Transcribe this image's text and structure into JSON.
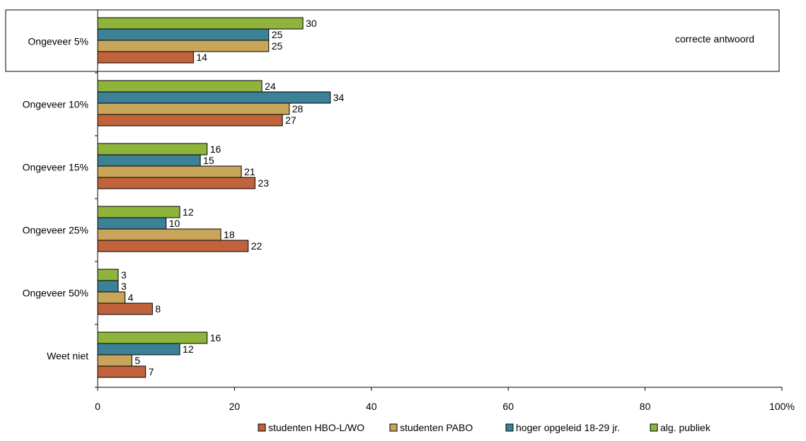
{
  "chart_data": {
    "type": "bar",
    "orientation": "horizontal",
    "categories": [
      "Ongeveer 5%",
      "Ongeveer 10%",
      "Ongeveer 15%",
      "Ongeveer 25%",
      "Ongeveer 50%",
      "Weet niet"
    ],
    "series": [
      {
        "name": "alg. publiek",
        "color": "#8fb43c",
        "values": [
          30,
          24,
          16,
          12,
          3,
          16
        ]
      },
      {
        "name": "hoger opgeleid 18-29 jr.",
        "color": "#3d8197",
        "values": [
          25,
          34,
          15,
          10,
          3,
          12
        ]
      },
      {
        "name": "studenten PABO",
        "color": "#c9a559",
        "values": [
          25,
          28,
          21,
          18,
          4,
          5
        ]
      },
      {
        "name": "studenten HBO-L/WO",
        "color": "#c0623b",
        "values": [
          14,
          27,
          23,
          22,
          8,
          7
        ]
      }
    ],
    "legend_order": [
      "studenten HBO-L/WO",
      "studenten PABO",
      "hoger opgeleid 18-29 jr.",
      "alg. publiek"
    ],
    "x_ticks": [
      "0",
      "20",
      "40",
      "60",
      "80",
      "100%"
    ],
    "xlim": [
      0,
      100
    ],
    "grid": false,
    "legend_position": "bottom",
    "annotation": {
      "text": "correcte antwoord",
      "category": "Ongeveer 5%"
    }
  }
}
